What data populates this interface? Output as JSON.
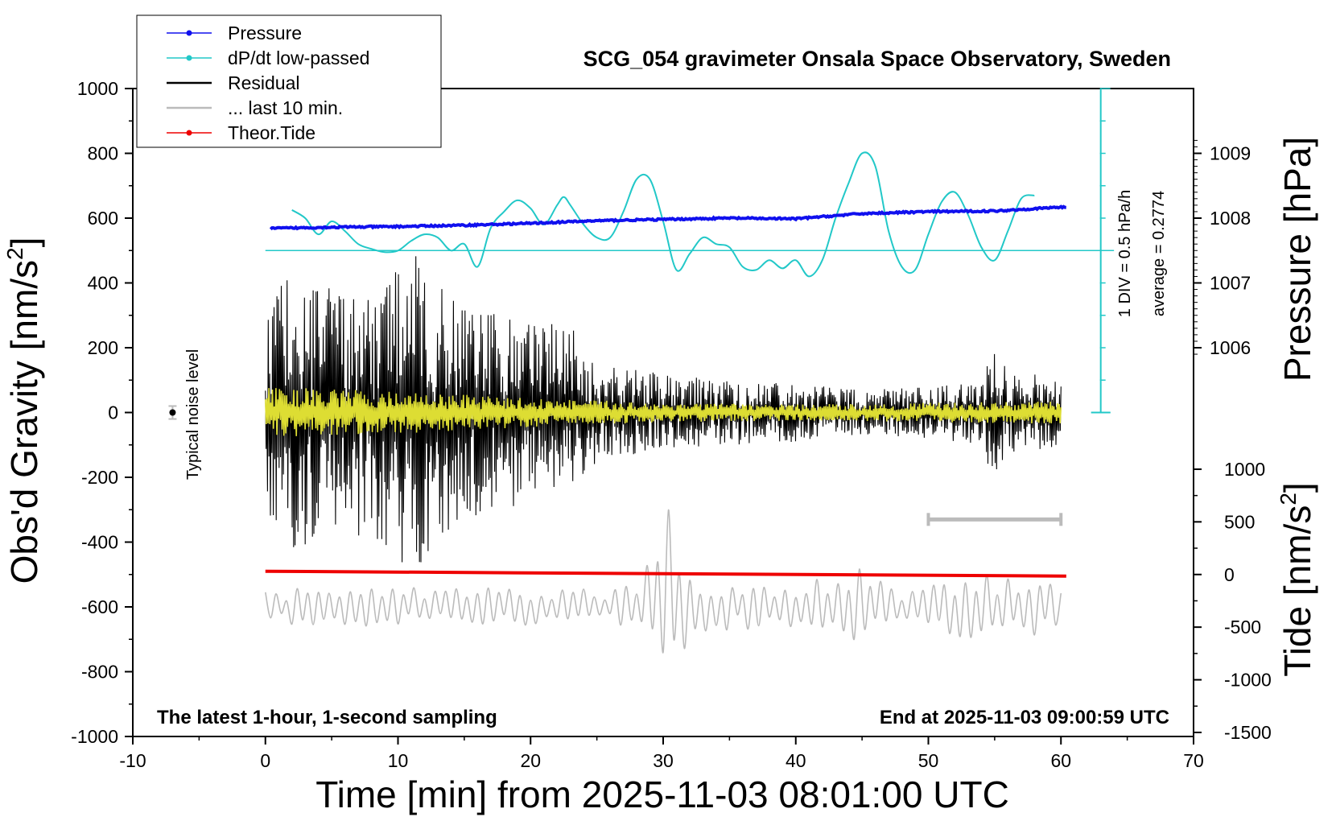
{
  "chart_data": {
    "type": "line",
    "title": "SCG_054 gravimeter Onsala Space Observatory, Sweden",
    "xlabel": "Time [min] from 2025-11-03 08:01:00 UTC",
    "ylabel_left_main": "Obs'd Gravity [nm/s",
    "ylabel_left_sup": "2",
    "ylabel_left_end": "]",
    "ylabel_pressure": "Pressure [hPa]",
    "ylabel_tide_main": "Tide [nm/s",
    "ylabel_tide_sup": "2",
    "ylabel_tide_end": "]",
    "xlim": [
      -10,
      70
    ],
    "ylim": [
      -1000,
      1000
    ],
    "x_ticks": [
      "-10",
      "0",
      "10",
      "20",
      "30",
      "40",
      "50",
      "60",
      "70"
    ],
    "y_ticks": [
      "1000",
      "800",
      "600",
      "400",
      "200",
      "0",
      "-200",
      "-400",
      "-600",
      "-800",
      "-1000"
    ],
    "pressure_ticks": [
      "1009",
      "1008",
      "1007",
      "1006"
    ],
    "pressure_tick_values": [
      1009,
      1008,
      1007,
      1006
    ],
    "tide_ticks": [
      "1000",
      "500",
      "0",
      "-500",
      "-1000",
      "-1500"
    ],
    "tide_tick_values": [
      1000,
      500,
      0,
      -500,
      -1000,
      -1500
    ],
    "legend": [
      {
        "label": "Pressure",
        "color": "#1010ee",
        "marker": true
      },
      {
        "label": "dP/dt low-passed",
        "color": "#22c8c8",
        "marker": true
      },
      {
        "label": "Residual",
        "color": "#000000",
        "marker": false
      },
      {
        "label": "... last 10 min.",
        "color": "#bbbbbb",
        "marker": false
      },
      {
        "label": "Theor.Tide",
        "color": "#ee0000",
        "marker": true
      }
    ],
    "series": [
      {
        "name": "Pressure",
        "unit": "hPa",
        "color": "#1010ee",
        "x": [
          0,
          5,
          10,
          15,
          20,
          25,
          30,
          35,
          40,
          45,
          50,
          55,
          60
        ],
        "values": [
          1007.84,
          1007.86,
          1007.87,
          1007.89,
          1007.92,
          1007.96,
          1007.98,
          1008.0,
          1007.99,
          1008.07,
          1008.1,
          1008.11,
          1008.17
        ]
      },
      {
        "name": "dP/dt low-passed",
        "unit": "gravity-axis",
        "color": "#22c8c8",
        "x": [
          2,
          3,
          4,
          5,
          6,
          7,
          8,
          9,
          10,
          11,
          12,
          13,
          14,
          15,
          16,
          17,
          18,
          19,
          20,
          21,
          22,
          22.5,
          23,
          24,
          25,
          26,
          27,
          28,
          29,
          30,
          31,
          32,
          33,
          34,
          35,
          36,
          37,
          38,
          39,
          40,
          41,
          42,
          43,
          44,
          45,
          46,
          47,
          48,
          49,
          50,
          51,
          52,
          53,
          54,
          55,
          56,
          57,
          58
        ],
        "values": [
          625,
          600,
          550,
          590,
          560,
          520,
          505,
          495,
          500,
          530,
          550,
          540,
          500,
          520,
          450,
          570,
          620,
          655,
          630,
          580,
          640,
          665,
          640,
          580,
          540,
          540,
          620,
          720,
          720,
          590,
          440,
          490,
          540,
          520,
          510,
          450,
          440,
          470,
          445,
          470,
          420,
          470,
          600,
          710,
          800,
          760,
          560,
          450,
          440,
          550,
          650,
          680,
          610,
          510,
          470,
          560,
          660,
          670
        ]
      },
      {
        "name": "Residual",
        "unit": "nm/s2",
        "color": "#000000",
        "x": [
          0,
          2,
          5,
          8,
          10.3,
          10.5,
          11.5,
          13,
          15,
          18,
          20,
          23,
          25,
          30,
          35,
          40,
          45,
          50,
          54,
          55,
          56,
          60
        ],
        "envelope": [
          290,
          460,
          380,
          400,
          465,
          500,
          485,
          400,
          330,
          300,
          290,
          270,
          150,
          120,
          100,
          90,
          70,
          80,
          100,
          260,
          130,
          110
        ]
      },
      {
        "name": "Residual low-passed",
        "unit": "nm/s2",
        "color": "#dddd33",
        "x": [
          0,
          10,
          20,
          30,
          40,
          50,
          60
        ],
        "envelope": [
          80,
          65,
          45,
          30,
          25,
          30,
          35
        ]
      },
      {
        "name": "... last 10 min.",
        "unit": "nm/s2",
        "color": "#bbbbbb",
        "baseline": -600,
        "x": [
          0,
          10,
          20,
          27,
          28.5,
          30.1,
          30.8,
          32,
          40,
          43,
          45,
          48,
          55,
          57,
          60
        ],
        "envelope": [
          60,
          60,
          60,
          60,
          120,
          320,
          300,
          90,
          60,
          120,
          120,
          60,
          110,
          100,
          60
        ]
      },
      {
        "name": "Theor.Tide",
        "unit": "nm/s2",
        "color": "#ee0000",
        "x": [
          0,
          60.4
        ],
        "values": [
          -490,
          -505
        ]
      }
    ],
    "pressure_scale": {
      "label_top": "1 DIV = 0.5 hPa/h",
      "label_bottom": "average = 0.2774",
      "baseline": 500
    },
    "noise_label": "Typical noise level",
    "footer_left": "The latest 1-hour, 1-second sampling",
    "footer_right": "End at 2025-11-03 09:00:59 UTC",
    "window_bar": [
      50,
      60
    ]
  }
}
